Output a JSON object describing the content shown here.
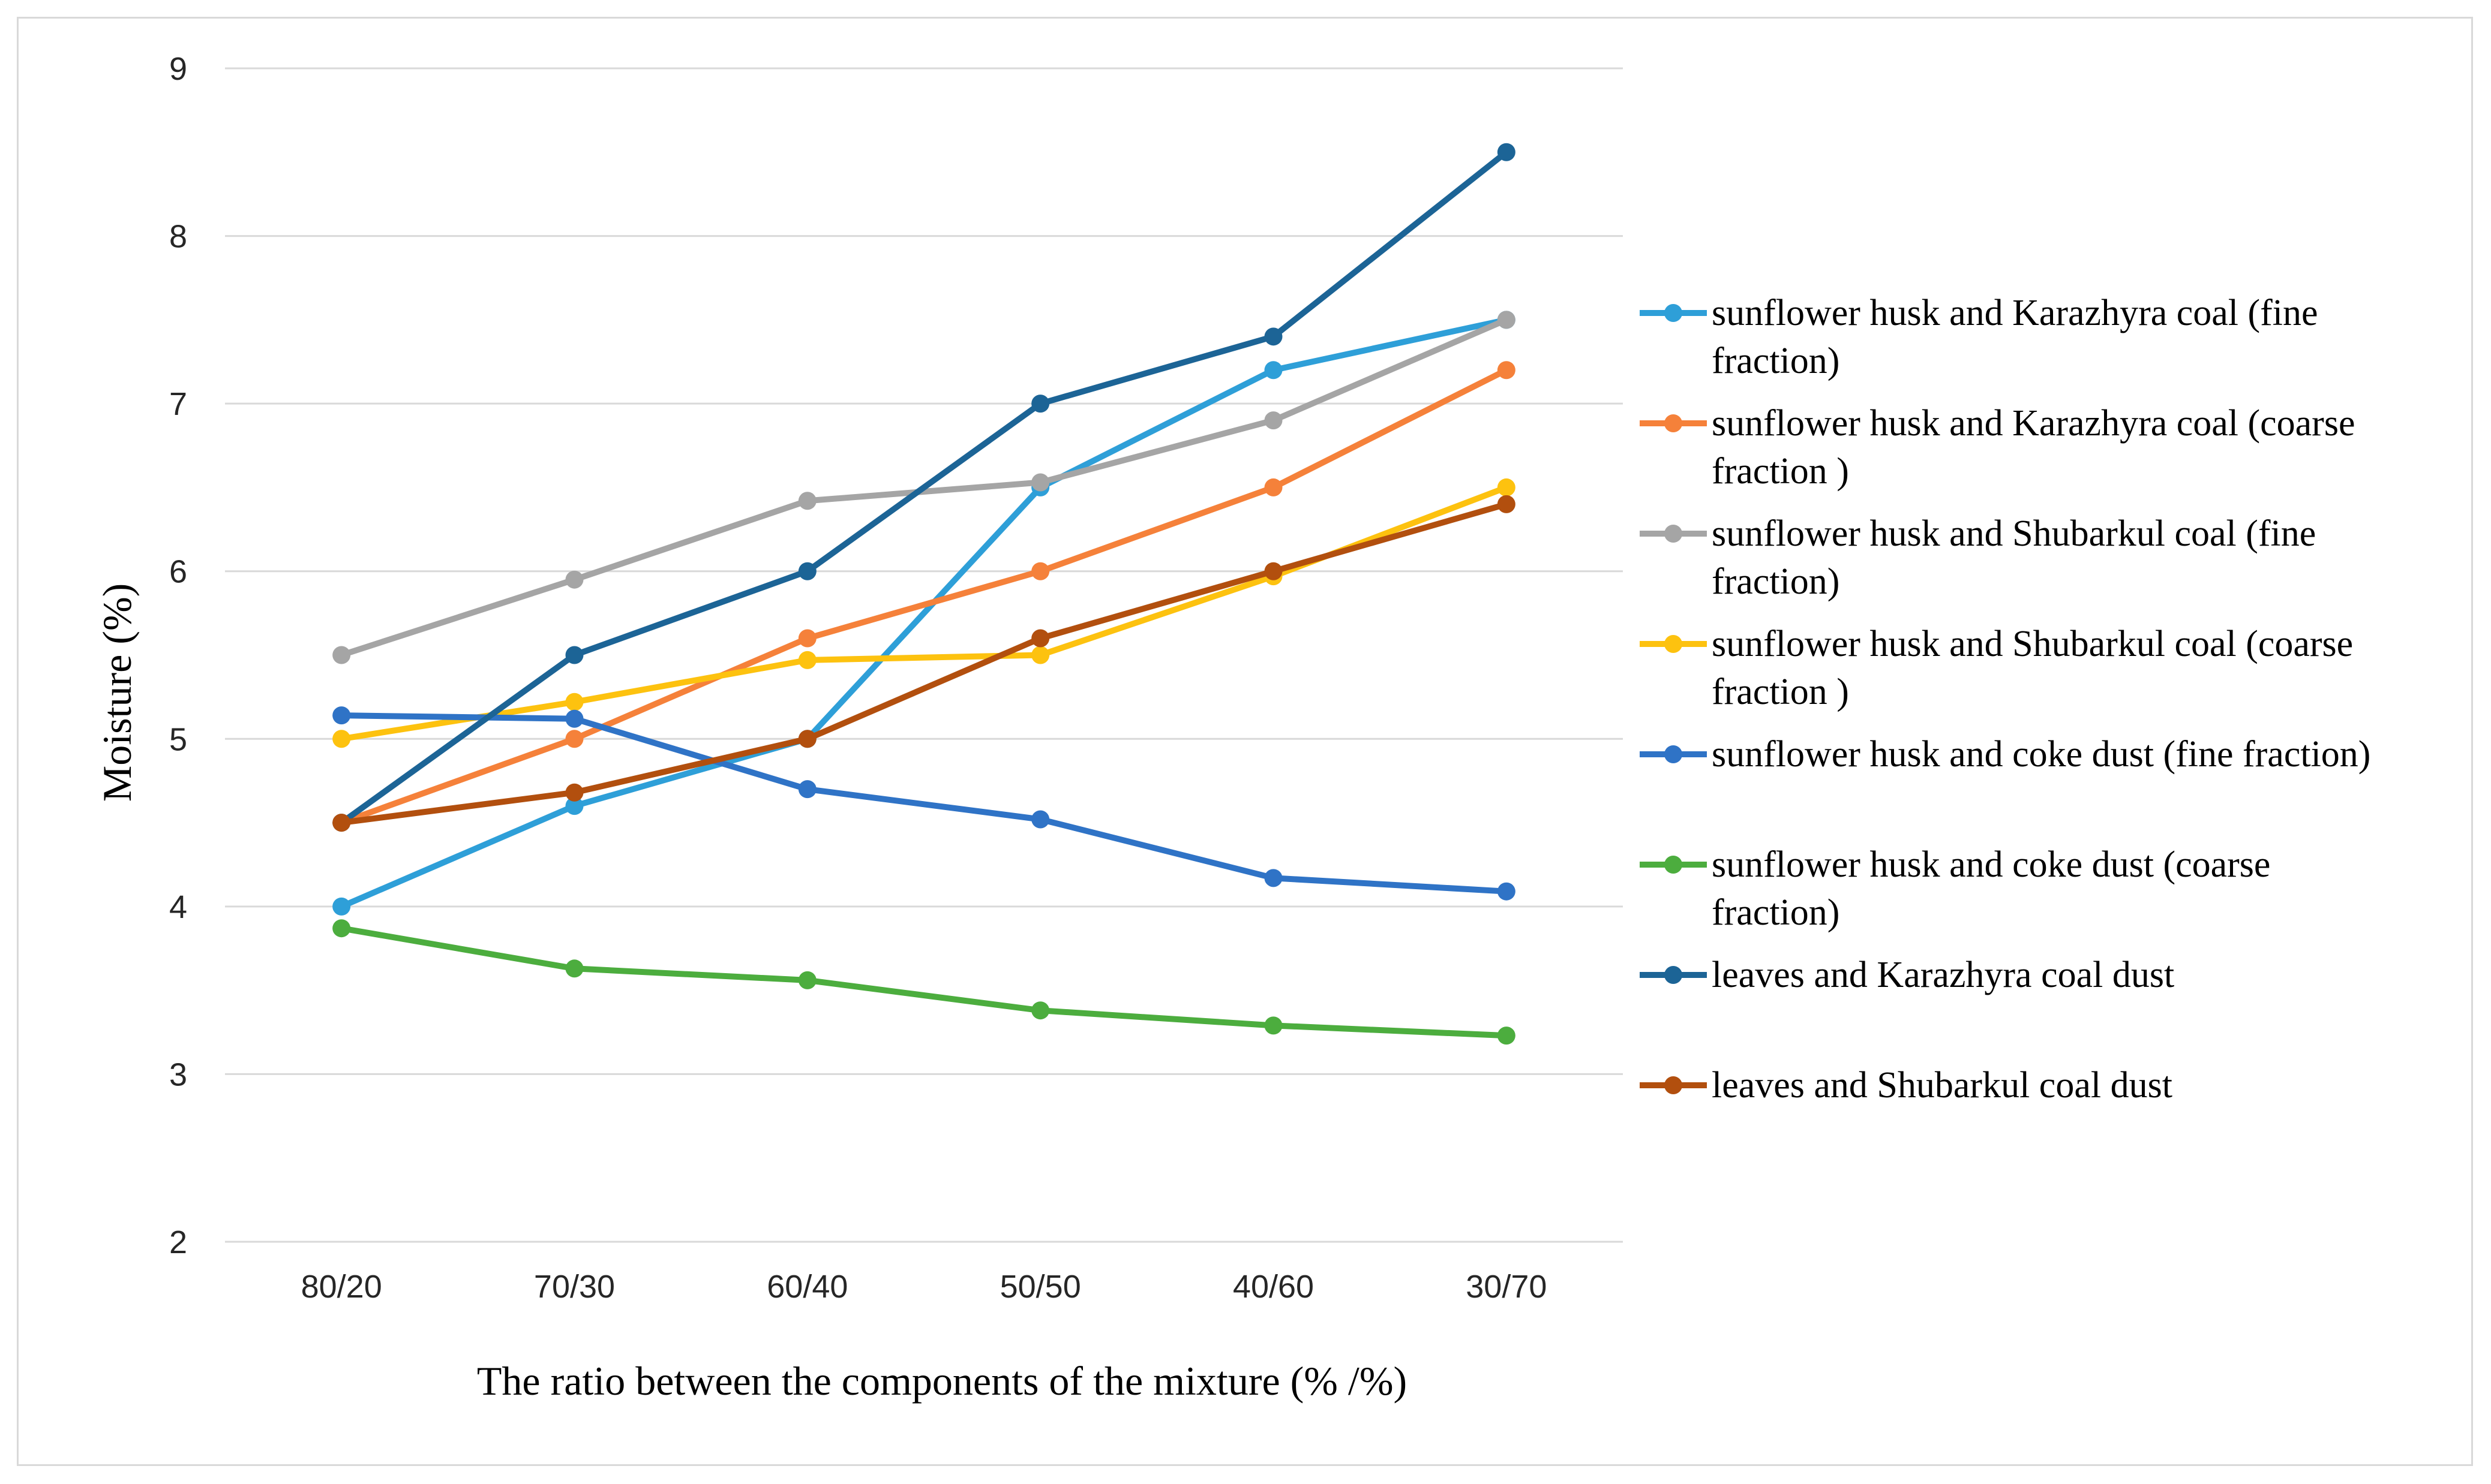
{
  "chart_data": {
    "type": "line",
    "title": "",
    "xlabel": "The ratio between the components of the mixture (% /%)",
    "ylabel": "Moisture (%)",
    "ylim": [
      2,
      9
    ],
    "yticks": [
      "2",
      "3",
      "4",
      "5",
      "6",
      "7",
      "8",
      "9"
    ],
    "categories": [
      "80/20",
      "70/30",
      "60/40",
      "50/50",
      "40/60",
      "30/70"
    ],
    "grid": "horizontal",
    "legend_position": "right",
    "series": [
      {
        "name": "sunflower husk and Karazhyra coal (fine fraction)",
        "legend_lines": [
          "sunflower husk and Karazhyra coal (fine",
          "fraction)"
        ],
        "color": "#2e9fd8",
        "values": [
          4.0,
          4.6,
          5.0,
          6.5,
          7.2,
          7.5
        ]
      },
      {
        "name": "sunflower husk and Karazhyra coal (coarse fraction )",
        "legend_lines": [
          "sunflower husk and Karazhyra coal (coarse",
          "fraction )"
        ],
        "color": "#f5813a",
        "values": [
          4.5,
          5.0,
          5.6,
          6.0,
          6.5,
          7.2
        ]
      },
      {
        "name": "sunflower husk and Shubarkul coal (fine fraction)",
        "legend_lines": [
          "sunflower husk and Shubarkul coal (fine",
          "fraction)"
        ],
        "color": "#a5a5a5",
        "values": [
          5.5,
          5.95,
          6.42,
          6.53,
          6.9,
          7.5
        ]
      },
      {
        "name": "sunflower husk and Shubarkul coal (coarse fraction )",
        "legend_lines": [
          "sunflower husk and Shubarkul coal (coarse",
          "fraction )"
        ],
        "color": "#fdc20f",
        "values": [
          5.0,
          5.22,
          5.47,
          5.5,
          5.97,
          6.5
        ]
      },
      {
        "name": "sunflower husk and coke dust (fine fraction)",
        "legend_lines": [
          "sunflower husk and coke dust (fine fraction)"
        ],
        "color": "#2f73c6",
        "values": [
          5.14,
          5.12,
          4.7,
          4.52,
          4.17,
          4.09
        ]
      },
      {
        "name": "sunflower husk and coke dust (coarse fraction)",
        "legend_lines": [
          "sunflower husk and coke dust (coarse",
          "fraction)"
        ],
        "color": "#4cad3e",
        "values": [
          3.87,
          3.63,
          3.56,
          3.38,
          3.29,
          3.23
        ]
      },
      {
        "name": "leaves and Karazhyra coal dust",
        "legend_lines": [
          "leaves and Karazhyra coal dust"
        ],
        "color": "#1c6496",
        "values": [
          4.5,
          5.5,
          6.0,
          7.0,
          7.4,
          8.5
        ]
      },
      {
        "name": "leaves and Shubarkul coal dust",
        "legend_lines": [
          "leaves and Shubarkul coal dust"
        ],
        "color": "#b24f0e",
        "values": [
          4.5,
          4.68,
          5.0,
          5.6,
          6.0,
          6.4
        ]
      }
    ]
  }
}
